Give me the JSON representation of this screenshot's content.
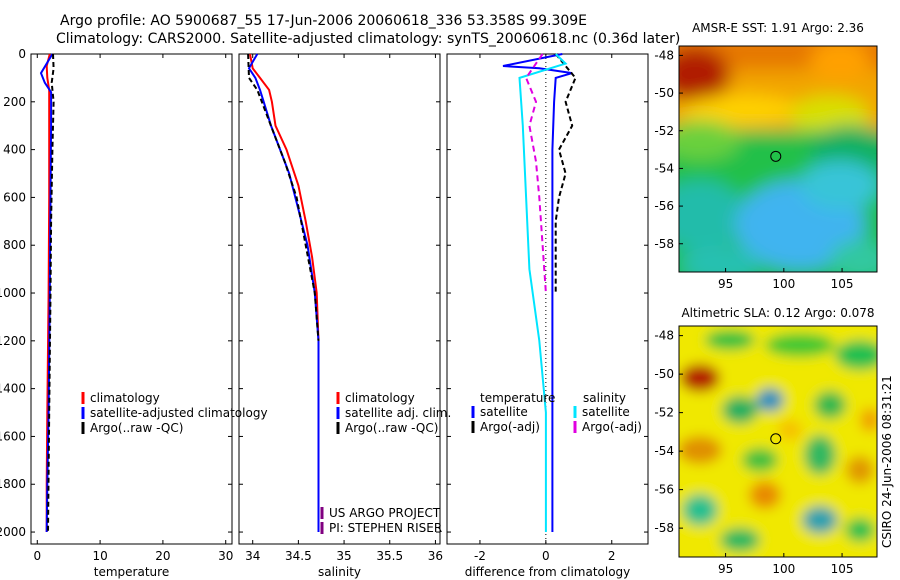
{
  "header": {
    "title_line1": "Argo profile: AO 5900687_55 17-Jun-2006 20060618_336 53.358S 99.309E",
    "title_line2": "Climatology: CARS2000. Satellite-adjusted climatology: synTS_20060618.nc (0.36d later)"
  },
  "stamp": "CSIRO 24-Jun-2006 08:31:21",
  "colors": {
    "red": "#ff0000",
    "blue": "#0000ff",
    "black": "#000000",
    "cyan": "#00e5ff",
    "magenta": "#e000e0",
    "purple": "#800080"
  },
  "chart_data": [
    {
      "id": "temperature",
      "type": "line",
      "xlabel": "temperature",
      "ylabel": "",
      "xlim": [
        -1,
        31
      ],
      "ylim": [
        2050,
        0
      ],
      "xticks": [
        0,
        10,
        20,
        30
      ],
      "yticks": [
        0,
        200,
        400,
        600,
        800,
        1000,
        1200,
        1400,
        1600,
        1800,
        2000
      ],
      "series": [
        {
          "name": "climatology",
          "color": "#ff0000",
          "dash": "",
          "points": [
            [
              2.0,
              0
            ],
            [
              1.5,
              50
            ],
            [
              1.6,
              100
            ],
            [
              1.9,
              150
            ],
            [
              1.9,
              300
            ],
            [
              1.9,
              600
            ],
            [
              1.8,
              1000
            ],
            [
              1.6,
              1500
            ],
            [
              1.5,
              1800
            ],
            [
              1.5,
              2000
            ]
          ]
        },
        {
          "name": "satellite-adjusted climatology",
          "color": "#0000ff",
          "dash": "",
          "points": [
            [
              2.4,
              0
            ],
            [
              0.6,
              80
            ],
            [
              1.2,
              120
            ],
            [
              2.2,
              160
            ],
            [
              2.2,
              300
            ],
            [
              2.1,
              600
            ],
            [
              2.0,
              1000
            ],
            [
              1.8,
              1500
            ],
            [
              1.6,
              1800
            ],
            [
              1.5,
              2000
            ]
          ]
        },
        {
          "name": "Argo(..raw -QC)",
          "color": "#000000",
          "dash": "5,3",
          "points": [
            [
              2.5,
              0
            ],
            [
              2.6,
              60
            ],
            [
              2.3,
              120
            ],
            [
              2.6,
              200
            ],
            [
              2.4,
              400
            ],
            [
              2.2,
              700
            ],
            [
              2.1,
              1000
            ],
            [
              1.9,
              1500
            ],
            [
              1.7,
              2000
            ]
          ]
        }
      ],
      "legend": [
        {
          "label": "climatology",
          "color": "#ff0000"
        },
        {
          "label": "satellite-adjusted climatology",
          "color": "#0000ff"
        },
        {
          "label": "Argo(..raw -QC)",
          "color": "#000000"
        }
      ]
    },
    {
      "id": "salinity",
      "type": "line",
      "xlabel": "salinity",
      "ylabel": "",
      "xlim": [
        33.85,
        36.05
      ],
      "ylim": [
        2050,
        0
      ],
      "xticks": [
        34,
        34.5,
        35,
        35.5,
        36
      ],
      "series": [
        {
          "name": "climatology",
          "color": "#ff0000",
          "dash": "",
          "points": [
            [
              33.97,
              0
            ],
            [
              34.0,
              60
            ],
            [
              34.08,
              100
            ],
            [
              34.18,
              150
            ],
            [
              34.21,
              200
            ],
            [
              34.25,
              300
            ],
            [
              34.37,
              400
            ],
            [
              34.5,
              550
            ],
            [
              34.58,
              700
            ],
            [
              34.65,
              850
            ],
            [
              34.7,
              1000
            ],
            [
              34.72,
              1200
            ],
            [
              34.72,
              1500
            ],
            [
              34.72,
              2000
            ]
          ]
        },
        {
          "name": "satellite adj. clim.",
          "color": "#0000ff",
          "dash": "",
          "points": [
            [
              34.05,
              0
            ],
            [
              34.02,
              20
            ],
            [
              33.96,
              60
            ],
            [
              34.03,
              100
            ],
            [
              34.08,
              150
            ],
            [
              34.12,
              200
            ],
            [
              34.2,
              300
            ],
            [
              34.3,
              400
            ],
            [
              34.4,
              500
            ],
            [
              34.5,
              650
            ],
            [
              34.6,
              800
            ],
            [
              34.68,
              1000
            ],
            [
              34.72,
              1200
            ],
            [
              34.72,
              1500
            ],
            [
              34.72,
              2000
            ]
          ]
        },
        {
          "name": "Argo(..raw -QC)",
          "color": "#000000",
          "dash": "5,3",
          "points": [
            [
              33.95,
              0
            ],
            [
              33.96,
              100
            ],
            [
              34.05,
              150
            ],
            [
              34.15,
              250
            ],
            [
              34.25,
              350
            ],
            [
              34.35,
              450
            ],
            [
              34.48,
              600
            ],
            [
              34.58,
              800
            ],
            [
              34.68,
              1000
            ],
            [
              34.72,
              1200
            ]
          ]
        }
      ],
      "legend": [
        {
          "label": "climatology",
          "color": "#ff0000"
        },
        {
          "label": "satellite adj. clim.",
          "color": "#0000ff"
        },
        {
          "label": "Argo(..raw -QC)",
          "color": "#000000"
        }
      ],
      "notes": [
        {
          "label": "US ARGO PROJECT",
          "color": "#800080"
        },
        {
          "label": "PI: STEPHEN RISER",
          "color": "#800080"
        }
      ]
    },
    {
      "id": "difference",
      "type": "line",
      "xlabel": "difference from climatology",
      "ylabel": "",
      "xlim": [
        -3,
        3.1
      ],
      "ylim": [
        2050,
        0
      ],
      "xticks": [
        -2,
        0,
        2
      ],
      "series": [
        {
          "name": "temperature satellite",
          "color": "#0000ff",
          "dash": "",
          "points": [
            [
              0.5,
              0
            ],
            [
              -1.3,
              50
            ],
            [
              -0.2,
              60
            ],
            [
              0.8,
              80
            ],
            [
              0.3,
              100
            ],
            [
              0.25,
              200
            ],
            [
              0.2,
              400
            ],
            [
              0.2,
              600
            ],
            [
              0.2,
              900
            ],
            [
              0.2,
              1300
            ],
            [
              0.2,
              2000
            ]
          ]
        },
        {
          "name": "temperature Argo(-adj)",
          "color": "#000000",
          "dash": "5,3",
          "points": [
            [
              0.3,
              0
            ],
            [
              0.6,
              50
            ],
            [
              0.9,
              100
            ],
            [
              0.6,
              200
            ],
            [
              0.8,
              300
            ],
            [
              0.4,
              400
            ],
            [
              0.6,
              500
            ],
            [
              0.4,
              600
            ],
            [
              0.3,
              700
            ],
            [
              0.3,
              900
            ],
            [
              0.3,
              1000
            ]
          ]
        },
        {
          "name": "salinity satellite",
          "color": "#00e5ff",
          "dash": "",
          "points": [
            [
              0.3,
              0
            ],
            [
              0.6,
              40
            ],
            [
              -0.8,
              100
            ],
            [
              -0.7,
              300
            ],
            [
              -0.6,
              600
            ],
            [
              -0.5,
              900
            ],
            [
              -0.2,
              1200
            ],
            [
              0.0,
              1500
            ],
            [
              0.0,
              2000
            ]
          ]
        },
        {
          "name": "salinity Argo(-adj)",
          "color": "#e000e0",
          "dash": "6,4",
          "points": [
            [
              -0.1,
              0
            ],
            [
              -0.6,
              100
            ],
            [
              -0.3,
              200
            ],
            [
              -0.5,
              300
            ],
            [
              -0.3,
              450
            ],
            [
              -0.2,
              600
            ],
            [
              -0.1,
              800
            ],
            [
              0.0,
              1000
            ]
          ]
        }
      ],
      "legend_headers": [
        "temperature",
        "salinity"
      ],
      "legend_temperature": [
        {
          "label": "satellite",
          "color": "#0000ff"
        },
        {
          "label": "Argo(-adj)",
          "color": "#000000"
        }
      ],
      "legend_salinity": [
        {
          "label": "satellite",
          "color": "#00e5ff"
        },
        {
          "label": "Argo(-adj)",
          "color": "#e000e0"
        }
      ]
    },
    {
      "id": "sst_map",
      "type": "heatmap",
      "title": "AMSR-E SST: 1.91  Argo: 2.36",
      "xticks": [
        95,
        100,
        105
      ],
      "yticks": [
        -48,
        -50,
        -52,
        -54,
        -56,
        -58
      ],
      "xlim": [
        91,
        108
      ],
      "ylim": [
        -47.5,
        -59.5
      ],
      "float_position": [
        99.309,
        -53.358
      ]
    },
    {
      "id": "sla_map",
      "type": "heatmap",
      "title": "Altimetric SLA: 0.12  Argo: 0.078",
      "xticks": [
        95,
        100,
        105
      ],
      "yticks": [
        -48,
        -50,
        -52,
        -54,
        -56,
        -58
      ],
      "xlim": [
        91,
        108
      ],
      "ylim": [
        -47.5,
        -59.5
      ],
      "float_position": [
        99.309,
        -53.358
      ]
    }
  ]
}
